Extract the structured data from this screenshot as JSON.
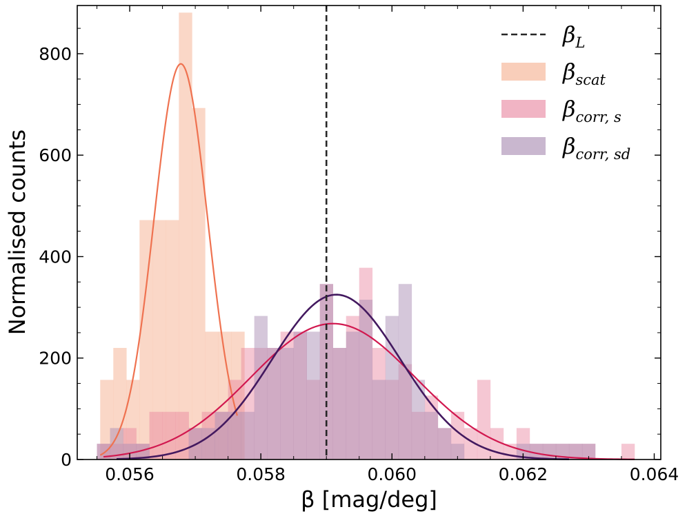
{
  "chart_data": {
    "type": "histogram",
    "xlabel": "β [mag/deg]",
    "ylabel": "Normalised counts",
    "xlim": [
      0.0552,
      0.0641
    ],
    "ylim": [
      0,
      895
    ],
    "xticks": [
      0.056,
      0.058,
      0.06,
      0.062,
      0.064
    ],
    "xtick_labels": [
      "0.056",
      "0.058",
      "0.060",
      "0.062",
      "0.064"
    ],
    "yticks": [
      0,
      200,
      400,
      600,
      800
    ],
    "ytick_labels": [
      "0",
      "200",
      "400",
      "600",
      "800"
    ],
    "grid": false,
    "legend_position": "top-right",
    "reference_line": {
      "name": "β_L",
      "label_base": "β",
      "label_sub": "L",
      "x": 0.059,
      "style": "dashed",
      "color": "#262626"
    },
    "series": [
      {
        "name": "β_scat",
        "label_base": "β",
        "label_sub": "scat",
        "color": "#f8c2a9",
        "opacity": 0.65,
        "line_color": "#ef7250",
        "bins": [
          {
            "x0": 0.05555,
            "x1": 0.05575,
            "v": 157
          },
          {
            "x0": 0.05575,
            "x1": 0.05595,
            "v": 220
          },
          {
            "x0": 0.05595,
            "x1": 0.05615,
            "v": 157
          },
          {
            "x0": 0.05615,
            "x1": 0.05635,
            "v": 472
          },
          {
            "x0": 0.05635,
            "x1": 0.05655,
            "v": 472
          },
          {
            "x0": 0.05655,
            "x1": 0.05675,
            "v": 472
          },
          {
            "x0": 0.05675,
            "x1": 0.05695,
            "v": 881
          },
          {
            "x0": 0.05695,
            "x1": 0.05715,
            "v": 693
          },
          {
            "x0": 0.05715,
            "x1": 0.05735,
            "v": 252
          },
          {
            "x0": 0.05735,
            "x1": 0.05755,
            "v": 252
          },
          {
            "x0": 0.05755,
            "x1": 0.05775,
            "v": 252
          }
        ],
        "fit": {
          "mu": 0.05678,
          "sigma": 0.00041,
          "amp": 780,
          "x0": 0.05555,
          "x1": 0.05764
        }
      },
      {
        "name": "β_corr,s",
        "label_base": "β",
        "label_sub": "corr, s",
        "color": "#e8829d",
        "opacity": 0.45,
        "line_color": "#d1184f",
        "bins": [
          {
            "x0": 0.0555,
            "x1": 0.0557,
            "v": 31
          },
          {
            "x0": 0.0557,
            "x1": 0.0559,
            "v": 31
          },
          {
            "x0": 0.0559,
            "x1": 0.0561,
            "v": 62
          },
          {
            "x0": 0.0561,
            "x1": 0.0563,
            "v": 31
          },
          {
            "x0": 0.0563,
            "x1": 0.0565,
            "v": 94
          },
          {
            "x0": 0.0565,
            "x1": 0.0567,
            "v": 94
          },
          {
            "x0": 0.0567,
            "x1": 0.0569,
            "v": 94
          },
          {
            "x0": 0.0569,
            "x1": 0.0571,
            "v": 62
          },
          {
            "x0": 0.0571,
            "x1": 0.0573,
            "v": 94
          },
          {
            "x0": 0.0573,
            "x1": 0.0575,
            "v": 94
          },
          {
            "x0": 0.0575,
            "x1": 0.0577,
            "v": 157
          },
          {
            "x0": 0.0577,
            "x1": 0.0579,
            "v": 220
          },
          {
            "x0": 0.0579,
            "x1": 0.0581,
            "v": 220
          },
          {
            "x0": 0.0581,
            "x1": 0.0583,
            "v": 220
          },
          {
            "x0": 0.0583,
            "x1": 0.0585,
            "v": 252
          },
          {
            "x0": 0.0585,
            "x1": 0.0587,
            "v": 252
          },
          {
            "x0": 0.0587,
            "x1": 0.0589,
            "v": 157
          },
          {
            "x0": 0.0589,
            "x1": 0.0591,
            "v": 346
          },
          {
            "x0": 0.0591,
            "x1": 0.0593,
            "v": 220
          },
          {
            "x0": 0.0593,
            "x1": 0.0595,
            "v": 283
          },
          {
            "x0": 0.0595,
            "x1": 0.0597,
            "v": 378
          },
          {
            "x0": 0.0597,
            "x1": 0.0599,
            "v": 220
          },
          {
            "x0": 0.0599,
            "x1": 0.0601,
            "v": 157
          },
          {
            "x0": 0.0601,
            "x1": 0.0603,
            "v": 188
          },
          {
            "x0": 0.0603,
            "x1": 0.0605,
            "v": 94
          },
          {
            "x0": 0.0605,
            "x1": 0.0607,
            "v": 126
          },
          {
            "x0": 0.0607,
            "x1": 0.0609,
            "v": 62
          },
          {
            "x0": 0.0609,
            "x1": 0.0611,
            "v": 94
          },
          {
            "x0": 0.0611,
            "x1": 0.0613,
            "v": 62
          },
          {
            "x0": 0.0613,
            "x1": 0.0615,
            "v": 157
          },
          {
            "x0": 0.0615,
            "x1": 0.0617,
            "v": 62
          },
          {
            "x0": 0.0617,
            "x1": 0.0619,
            "v": 31
          },
          {
            "x0": 0.0619,
            "x1": 0.0621,
            "v": 62
          },
          {
            "x0": 0.0621,
            "x1": 0.0623,
            "v": 31
          },
          {
            "x0": 0.0623,
            "x1": 0.0625,
            "v": 31
          },
          {
            "x0": 0.0625,
            "x1": 0.0627,
            "v": 31
          },
          {
            "x0": 0.0627,
            "x1": 0.0629,
            "v": 31
          },
          {
            "x0": 0.0629,
            "x1": 0.0631,
            "v": 31
          },
          {
            "x0": 0.0635,
            "x1": 0.0637,
            "v": 31
          }
        ],
        "fit": {
          "mu": 0.0591,
          "sigma": 0.00125,
          "amp": 268,
          "x0": 0.0556,
          "x1": 0.0637
        }
      },
      {
        "name": "β_corr,sd",
        "label_base": "β",
        "label_sub": "corr, sd",
        "color": "#ac90b5",
        "opacity": 0.5,
        "line_color": "#43195f",
        "bins": [
          {
            "x0": 0.0555,
            "x1": 0.0557,
            "v": 31
          },
          {
            "x0": 0.0557,
            "x1": 0.0559,
            "v": 62
          },
          {
            "x0": 0.0559,
            "x1": 0.0561,
            "v": 31
          },
          {
            "x0": 0.0561,
            "x1": 0.0563,
            "v": 31
          },
          {
            "x0": 0.0569,
            "x1": 0.0571,
            "v": 62
          },
          {
            "x0": 0.0571,
            "x1": 0.0573,
            "v": 62
          },
          {
            "x0": 0.0573,
            "x1": 0.0575,
            "v": 94
          },
          {
            "x0": 0.0575,
            "x1": 0.0577,
            "v": 94
          },
          {
            "x0": 0.0577,
            "x1": 0.0579,
            "v": 94
          },
          {
            "x0": 0.0579,
            "x1": 0.0581,
            "v": 283
          },
          {
            "x0": 0.0581,
            "x1": 0.0583,
            "v": 220
          },
          {
            "x0": 0.0583,
            "x1": 0.0585,
            "v": 220
          },
          {
            "x0": 0.0585,
            "x1": 0.0587,
            "v": 252
          },
          {
            "x0": 0.0587,
            "x1": 0.0589,
            "v": 252
          },
          {
            "x0": 0.0589,
            "x1": 0.0591,
            "v": 346
          },
          {
            "x0": 0.0591,
            "x1": 0.0593,
            "v": 220
          },
          {
            "x0": 0.0593,
            "x1": 0.0595,
            "v": 252
          },
          {
            "x0": 0.0595,
            "x1": 0.0597,
            "v": 315
          },
          {
            "x0": 0.0597,
            "x1": 0.0599,
            "v": 157
          },
          {
            "x0": 0.0599,
            "x1": 0.0601,
            "v": 283
          },
          {
            "x0": 0.0601,
            "x1": 0.0603,
            "v": 346
          },
          {
            "x0": 0.0603,
            "x1": 0.0605,
            "v": 157
          },
          {
            "x0": 0.0605,
            "x1": 0.0607,
            "v": 94
          },
          {
            "x0": 0.0607,
            "x1": 0.0609,
            "v": 62
          },
          {
            "x0": 0.0609,
            "x1": 0.0611,
            "v": 31
          },
          {
            "x0": 0.0619,
            "x1": 0.0621,
            "v": 31
          },
          {
            "x0": 0.0621,
            "x1": 0.0623,
            "v": 31
          },
          {
            "x0": 0.0623,
            "x1": 0.0625,
            "v": 31
          },
          {
            "x0": 0.0625,
            "x1": 0.0627,
            "v": 31
          },
          {
            "x0": 0.0627,
            "x1": 0.0629,
            "v": 31
          },
          {
            "x0": 0.0629,
            "x1": 0.0631,
            "v": 31
          }
        ],
        "fit": {
          "mu": 0.05915,
          "sigma": 0.00098,
          "amp": 325,
          "x0": 0.0558,
          "x1": 0.0627
        }
      }
    ]
  }
}
